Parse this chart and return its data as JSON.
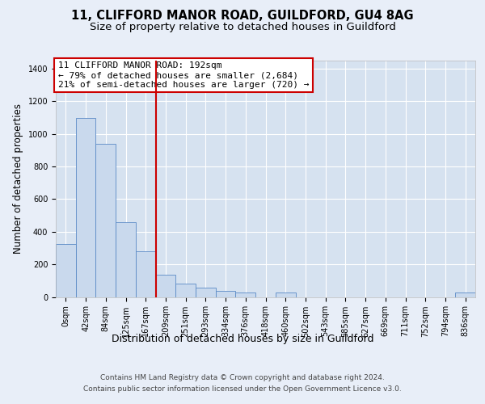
{
  "title1": "11, CLIFFORD MANOR ROAD, GUILDFORD, GU4 8AG",
  "title2": "Size of property relative to detached houses in Guildford",
  "xlabel": "Distribution of detached houses by size in Guildford",
  "ylabel": "Number of detached properties",
  "footer1": "Contains HM Land Registry data © Crown copyright and database right 2024.",
  "footer2": "Contains public sector information licensed under the Open Government Licence v3.0.",
  "annotation_line1": "11 CLIFFORD MANOR ROAD: 192sqm",
  "annotation_line2": "← 79% of detached houses are smaller (2,684)",
  "annotation_line3": "21% of semi-detached houses are larger (720) →",
  "bar_labels": [
    "0sqm",
    "42sqm",
    "84sqm",
    "125sqm",
    "167sqm",
    "209sqm",
    "251sqm",
    "293sqm",
    "334sqm",
    "376sqm",
    "418sqm",
    "460sqm",
    "502sqm",
    "543sqm",
    "585sqm",
    "627sqm",
    "669sqm",
    "711sqm",
    "752sqm",
    "794sqm",
    "836sqm"
  ],
  "bar_values": [
    325,
    1100,
    940,
    460,
    280,
    135,
    80,
    55,
    35,
    25,
    0,
    25,
    0,
    0,
    0,
    0,
    0,
    0,
    0,
    0,
    25
  ],
  "bar_color": "#c9d9ed",
  "bar_edge_color": "#5a8ac6",
  "vline_x": 4.5,
  "ylim": [
    0,
    1450
  ],
  "yticks": [
    0,
    200,
    400,
    600,
    800,
    1000,
    1200,
    1400
  ],
  "bg_color": "#e8eef8",
  "plot_bg_color": "#d6e2f0",
  "grid_color": "#ffffff",
  "vline_color": "#cc0000",
  "annotation_box_color": "#cc0000",
  "title_fontsize": 10.5,
  "subtitle_fontsize": 9.5,
  "annotation_fontsize": 8,
  "tick_fontsize": 7,
  "ylabel_fontsize": 8.5,
  "xlabel_fontsize": 9
}
